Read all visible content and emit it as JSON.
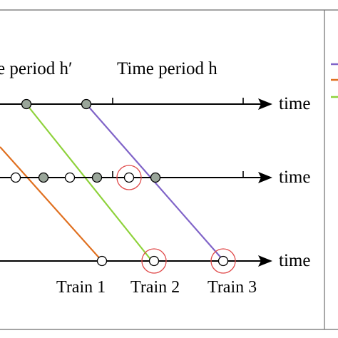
{
  "header": {
    "period_prev_label": "e period h′",
    "period_label": "Time period h"
  },
  "axes": [
    {
      "label": "time"
    },
    {
      "label": "time"
    },
    {
      "label": "time"
    }
  ],
  "trains": [
    {
      "label": "Train 1",
      "color": "#e07020"
    },
    {
      "label": "Train 2",
      "color": "#8ed23a"
    },
    {
      "label": "Train 3",
      "color": "#8064c8"
    }
  ],
  "legend": {
    "line_colors": [
      "#8064c8",
      "#e07020",
      "#8ed23a"
    ]
  },
  "colors": {
    "axis": "#000000",
    "node_filled": "#9aa69a",
    "node_open": "#ffffff",
    "highlight_ring": "#e04a4a",
    "frame": "#6e6e6e"
  }
}
